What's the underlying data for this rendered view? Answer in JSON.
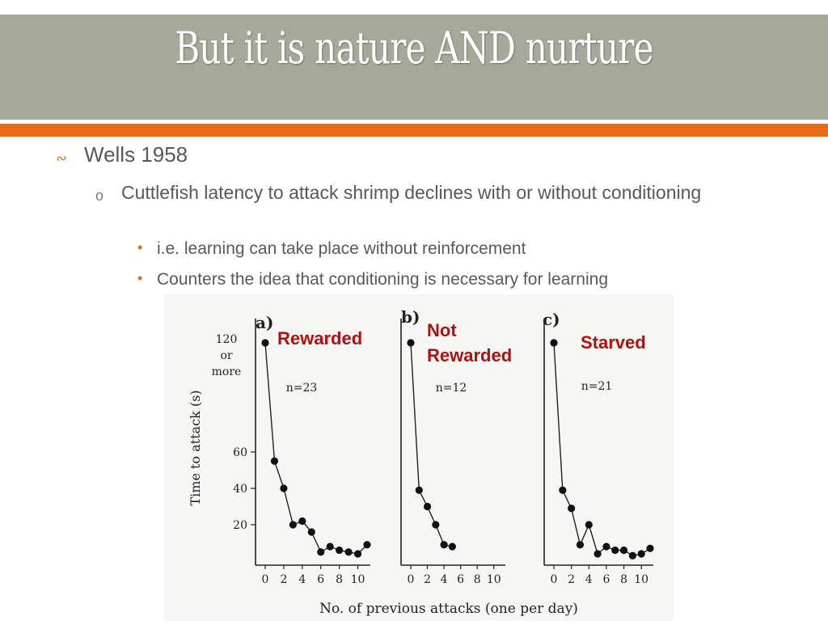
{
  "slide": {
    "title": "But it is nature AND nurture",
    "bullet_l1_glyph": "∾",
    "bullet_l1": "Wells 1958",
    "bullet_l2_glyph": "o",
    "bullet_l2": "Cuttlefish latency to attack shrimp declines with or without conditioning",
    "bullet_l3_glyph": "•",
    "bullet_l3": [
      "i.e. learning can take place without reinforcement",
      "Counters the idea that conditioning is necessary for learning"
    ]
  },
  "colors": {
    "title_band": "#a6a89a",
    "accent_orange": "#ea6b17",
    "label_red": "#b01010",
    "body_text": "#595959"
  },
  "chart_data": [
    {
      "type": "line",
      "panel_letter": "a)",
      "annotation": "Rewarded",
      "n_label": "n=23",
      "x": [
        0,
        1,
        2,
        3,
        4,
        5,
        6,
        7,
        8,
        9,
        10,
        11
      ],
      "y": [
        120,
        55,
        40,
        20,
        22,
        16,
        5,
        8,
        6,
        5,
        4,
        9
      ],
      "xticks": [
        "0",
        "2",
        "4",
        "6",
        "8",
        "10"
      ],
      "xlim": [
        0,
        11
      ],
      "ylim": [
        0,
        125
      ],
      "yticks": [
        "20",
        "40",
        "60"
      ],
      "ytop_label": [
        "120",
        "or",
        "more"
      ],
      "ylabel": "Time to attack (s)"
    },
    {
      "type": "line",
      "panel_letter": "b)",
      "annotation": [
        "Not",
        "Rewarded"
      ],
      "n_label": "n=12",
      "x": [
        0,
        1,
        2,
        3,
        4,
        5
      ],
      "y": [
        120,
        39,
        30,
        20,
        9,
        8
      ],
      "xticks": [
        "0",
        "2",
        "4",
        "6",
        "8",
        "10"
      ],
      "xlim": [
        0,
        11
      ],
      "ylim": [
        0,
        125
      ]
    },
    {
      "type": "line",
      "panel_letter": "c)",
      "annotation": "Starved",
      "n_label": "n=21",
      "x": [
        0,
        1,
        2,
        3,
        4,
        5,
        6,
        7,
        8,
        9,
        10,
        11
      ],
      "y": [
        120,
        39,
        29,
        9,
        20,
        4,
        8,
        6,
        6,
        3,
        4,
        7
      ],
      "xticks": [
        "0",
        "2",
        "4",
        "6",
        "8",
        "10"
      ],
      "xlim": [
        0,
        11
      ],
      "ylim": [
        0,
        125
      ]
    }
  ],
  "chart_common": {
    "xlabel": "No. of previous attacks (one per day)"
  }
}
